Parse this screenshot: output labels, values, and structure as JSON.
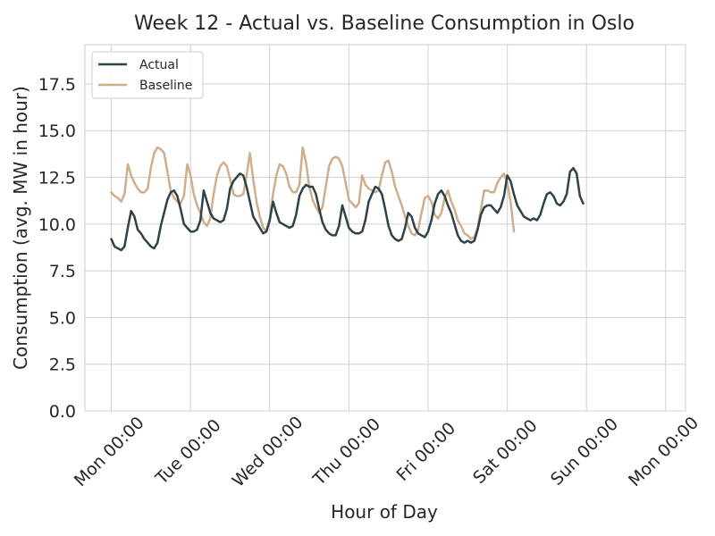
{
  "colors": {
    "actual": "#2e4348",
    "baseline": "#d1ae8b"
  },
  "chart_data": {
    "type": "line",
    "title": "Week 12 - Actual vs. Baseline Consumption in Oslo",
    "xlabel": "Hour of Day",
    "ylabel": "Consumption (avg. MW in hour)",
    "xunit": "hour",
    "xlim": [
      -8,
      174
    ],
    "ylim": [
      0,
      19.6
    ],
    "grid": true,
    "legend_position": "upper left",
    "yticks": [
      0.0,
      2.5,
      5.0,
      7.5,
      10.0,
      12.5,
      15.0,
      17.5
    ],
    "ytick_labels": [
      "0.0",
      "2.5",
      "5.0",
      "7.5",
      "10.0",
      "12.5",
      "15.0",
      "17.5"
    ],
    "xticks": [
      0,
      24,
      48,
      72,
      96,
      120,
      144,
      168
    ],
    "xtick_labels": [
      "Mon 00:00",
      "Tue 00:00",
      "Wed 00:00",
      "Thu 00:00",
      "Fri 00:00",
      "Sat 00:00",
      "Sun 00:00",
      "Mon 00:00"
    ],
    "series": [
      {
        "name": "Actual",
        "color": "#2e4348",
        "points": [
          [
            0,
            9.2
          ],
          [
            1,
            8.8
          ],
          [
            2,
            8.7
          ],
          [
            3,
            8.6
          ],
          [
            4,
            8.8
          ],
          [
            5,
            9.8
          ],
          [
            6,
            10.7
          ],
          [
            7,
            10.4
          ],
          [
            8,
            9.7
          ],
          [
            9,
            9.5
          ],
          [
            10,
            9.2
          ],
          [
            11,
            9.0
          ],
          [
            12,
            8.8
          ],
          [
            13,
            8.7
          ],
          [
            14,
            9.0
          ],
          [
            15,
            9.9
          ],
          [
            16,
            10.6
          ],
          [
            17,
            11.3
          ],
          [
            18,
            11.7
          ],
          [
            19,
            11.8
          ],
          [
            20,
            11.5
          ],
          [
            21,
            10.8
          ],
          [
            22,
            10.0
          ],
          [
            23,
            9.8
          ],
          [
            24,
            9.6
          ],
          [
            25,
            9.6
          ],
          [
            26,
            9.7
          ],
          [
            27,
            10.2
          ],
          [
            28,
            11.8
          ],
          [
            29,
            11.2
          ],
          [
            30,
            10.6
          ],
          [
            31,
            10.3
          ],
          [
            32,
            10.2
          ],
          [
            33,
            10.1
          ],
          [
            34,
            10.2
          ],
          [
            35,
            10.8
          ],
          [
            36,
            11.9
          ],
          [
            37,
            12.3
          ],
          [
            38,
            12.5
          ],
          [
            39,
            12.7
          ],
          [
            40,
            12.6
          ],
          [
            41,
            12.0
          ],
          [
            42,
            11.2
          ],
          [
            43,
            10.4
          ],
          [
            44,
            10.1
          ],
          [
            45,
            9.8
          ],
          [
            46,
            9.5
          ],
          [
            47,
            9.6
          ],
          [
            48,
            10.2
          ],
          [
            49,
            11.2
          ],
          [
            50,
            10.6
          ],
          [
            51,
            10.1
          ],
          [
            52,
            10.0
          ],
          [
            53,
            9.9
          ],
          [
            54,
            9.8
          ],
          [
            55,
            9.9
          ],
          [
            56,
            10.5
          ],
          [
            57,
            11.5
          ],
          [
            58,
            11.9
          ],
          [
            59,
            12.1
          ],
          [
            60,
            12.0
          ],
          [
            61,
            12.0
          ],
          [
            62,
            11.6
          ],
          [
            63,
            10.8
          ],
          [
            64,
            10.1
          ],
          [
            65,
            9.7
          ],
          [
            66,
            9.5
          ],
          [
            67,
            9.4
          ],
          [
            68,
            9.4
          ],
          [
            69,
            9.9
          ],
          [
            70,
            11.0
          ],
          [
            71,
            10.4
          ],
          [
            72,
            9.8
          ],
          [
            73,
            9.6
          ],
          [
            74,
            9.5
          ],
          [
            75,
            9.5
          ],
          [
            76,
            9.6
          ],
          [
            77,
            10.2
          ],
          [
            78,
            11.2
          ],
          [
            79,
            11.6
          ],
          [
            80,
            12.0
          ],
          [
            81,
            11.9
          ],
          [
            82,
            11.6
          ],
          [
            83,
            10.8
          ],
          [
            84,
            9.9
          ],
          [
            85,
            9.4
          ],
          [
            86,
            9.2
          ],
          [
            87,
            9.1
          ],
          [
            88,
            9.2
          ],
          [
            89,
            9.8
          ],
          [
            90,
            10.6
          ],
          [
            91,
            10.4
          ],
          [
            92,
            9.8
          ],
          [
            93,
            9.5
          ],
          [
            94,
            9.4
          ],
          [
            95,
            9.3
          ],
          [
            96,
            9.6
          ],
          [
            97,
            10.2
          ],
          [
            98,
            11.1
          ],
          [
            99,
            11.6
          ],
          [
            100,
            11.8
          ],
          [
            101,
            11.5
          ],
          [
            102,
            11.0
          ],
          [
            103,
            10.6
          ],
          [
            104,
            10.0
          ],
          [
            105,
            9.4
          ],
          [
            106,
            9.1
          ],
          [
            107,
            9.0
          ],
          [
            108,
            9.1
          ],
          [
            109,
            9.0
          ],
          [
            110,
            9.1
          ],
          [
            111,
            9.7
          ],
          [
            112,
            10.5
          ],
          [
            113,
            10.9
          ],
          [
            114,
            11.0
          ],
          [
            115,
            11.0
          ],
          [
            116,
            10.8
          ],
          [
            117,
            10.6
          ],
          [
            118,
            10.9
          ],
          [
            119,
            11.5
          ],
          [
            120,
            12.6
          ],
          [
            121,
            12.3
          ],
          [
            122,
            11.6
          ],
          [
            123,
            11.0
          ],
          [
            124,
            10.7
          ],
          [
            125,
            10.4
          ],
          [
            126,
            10.3
          ],
          [
            127,
            10.2
          ],
          [
            128,
            10.3
          ],
          [
            129,
            10.2
          ],
          [
            130,
            10.5
          ],
          [
            131,
            11.1
          ],
          [
            132,
            11.6
          ],
          [
            133,
            11.7
          ],
          [
            134,
            11.5
          ],
          [
            135,
            11.1
          ],
          [
            136,
            11.0
          ],
          [
            137,
            11.2
          ],
          [
            138,
            11.6
          ],
          [
            139,
            12.8
          ],
          [
            140,
            13.0
          ],
          [
            141,
            12.7
          ],
          [
            142,
            11.5
          ],
          [
            143,
            11.1
          ]
        ]
      },
      {
        "name": "Baseline",
        "color": "#d1ae8b",
        "points": [
          [
            0,
            11.7
          ],
          [
            1,
            11.5
          ],
          [
            2,
            11.4
          ],
          [
            3,
            11.2
          ],
          [
            4,
            11.6
          ],
          [
            5,
            13.2
          ],
          [
            6,
            12.6
          ],
          [
            7,
            12.2
          ],
          [
            8,
            11.9
          ],
          [
            9,
            11.7
          ],
          [
            10,
            11.7
          ],
          [
            11,
            11.9
          ],
          [
            12,
            13.0
          ],
          [
            13,
            13.8
          ],
          [
            14,
            14.1
          ],
          [
            15,
            14.0
          ],
          [
            16,
            13.8
          ],
          [
            17,
            12.8
          ],
          [
            18,
            11.8
          ],
          [
            19,
            11.4
          ],
          [
            20,
            11.2
          ],
          [
            21,
            11.1
          ],
          [
            22,
            11.5
          ],
          [
            23,
            13.2
          ],
          [
            24,
            12.6
          ],
          [
            25,
            11.6
          ],
          [
            26,
            11.0
          ],
          [
            27,
            10.6
          ],
          [
            28,
            10.1
          ],
          [
            29,
            9.9
          ],
          [
            30,
            10.3
          ],
          [
            31,
            11.6
          ],
          [
            32,
            12.6
          ],
          [
            33,
            13.1
          ],
          [
            34,
            13.3
          ],
          [
            35,
            13.1
          ],
          [
            36,
            12.4
          ],
          [
            37,
            11.6
          ],
          [
            38,
            11.5
          ],
          [
            39,
            11.5
          ],
          [
            40,
            11.6
          ],
          [
            41,
            12.6
          ],
          [
            42,
            13.8
          ],
          [
            43,
            12.4
          ],
          [
            44,
            11.2
          ],
          [
            45,
            10.4
          ],
          [
            46,
            9.8
          ],
          [
            47,
            9.6
          ],
          [
            48,
            10.3
          ],
          [
            49,
            11.6
          ],
          [
            50,
            12.6
          ],
          [
            51,
            13.2
          ],
          [
            52,
            13.1
          ],
          [
            53,
            12.7
          ],
          [
            54,
            12.0
          ],
          [
            55,
            11.7
          ],
          [
            56,
            11.7
          ],
          [
            57,
            12.1
          ],
          [
            58,
            14.1
          ],
          [
            59,
            13.3
          ],
          [
            60,
            12.0
          ],
          [
            61,
            11.3
          ],
          [
            62,
            10.9
          ],
          [
            63,
            10.6
          ],
          [
            64,
            10.9
          ],
          [
            65,
            12.0
          ],
          [
            66,
            13.1
          ],
          [
            67,
            13.5
          ],
          [
            68,
            13.6
          ],
          [
            69,
            13.5
          ],
          [
            70,
            13.1
          ],
          [
            71,
            12.2
          ],
          [
            72,
            11.3
          ],
          [
            73,
            11.1
          ],
          [
            74,
            10.9
          ],
          [
            75,
            11.1
          ],
          [
            76,
            12.6
          ],
          [
            77,
            12.1
          ],
          [
            78,
            11.9
          ],
          [
            79,
            11.8
          ],
          [
            80,
            11.7
          ],
          [
            81,
            11.8
          ],
          [
            82,
            12.6
          ],
          [
            83,
            13.3
          ],
          [
            84,
            13.4
          ],
          [
            85,
            12.8
          ],
          [
            86,
            12.0
          ],
          [
            87,
            11.5
          ],
          [
            88,
            11.0
          ],
          [
            89,
            10.4
          ],
          [
            90,
            9.9
          ],
          [
            91,
            9.5
          ],
          [
            92,
            9.4
          ],
          [
            93,
            9.7
          ],
          [
            94,
            10.6
          ],
          [
            95,
            11.4
          ],
          [
            96,
            11.5
          ],
          [
            97,
            11.2
          ],
          [
            98,
            10.5
          ],
          [
            99,
            10.3
          ],
          [
            100,
            10.6
          ],
          [
            101,
            11.4
          ],
          [
            102,
            11.8
          ],
          [
            103,
            11.2
          ],
          [
            104,
            10.8
          ],
          [
            105,
            10.2
          ],
          [
            106,
            9.9
          ],
          [
            107,
            9.5
          ],
          [
            108,
            9.4
          ],
          [
            109,
            9.2
          ],
          [
            110,
            9.3
          ],
          [
            111,
            9.8
          ],
          [
            112,
            10.8
          ],
          [
            113,
            11.8
          ],
          [
            114,
            11.8
          ],
          [
            115,
            11.7
          ],
          [
            116,
            11.7
          ],
          [
            117,
            12.2
          ],
          [
            118,
            12.5
          ],
          [
            119,
            12.7
          ],
          [
            120,
            12.2
          ],
          [
            121,
            11.2
          ],
          [
            122,
            9.6
          ]
        ]
      }
    ]
  }
}
